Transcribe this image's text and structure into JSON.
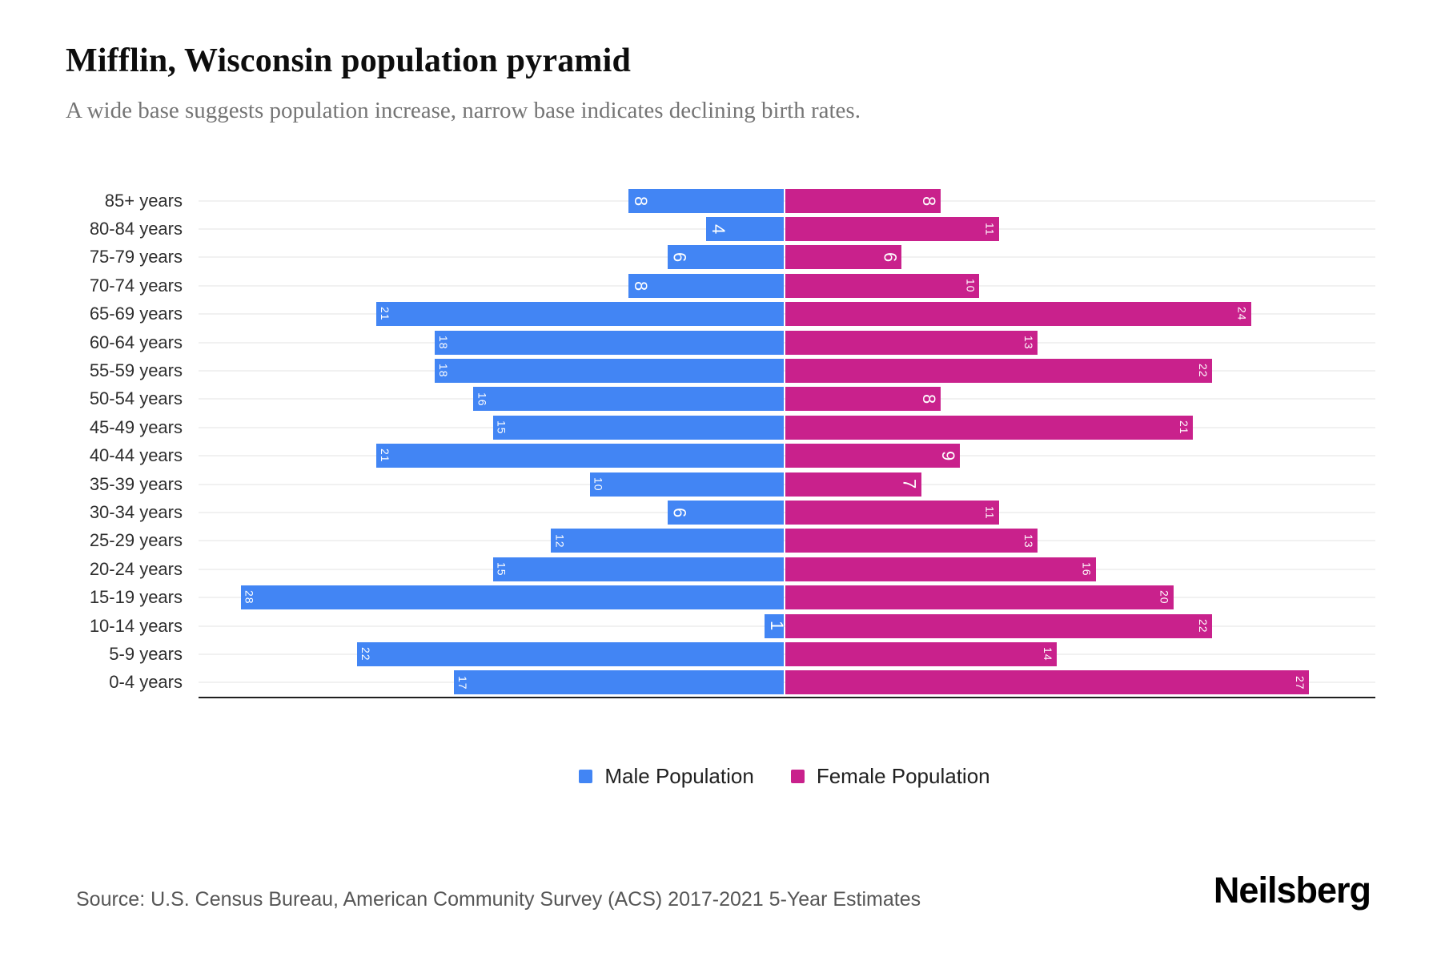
{
  "header": {
    "title": "Mifflin, Wisconsin population pyramid",
    "subtitle": "A wide base suggests population increase, narrow base indicates declining birth rates."
  },
  "chart_data": {
    "type": "bar",
    "variant": "population_pyramid",
    "title": "Mifflin, Wisconsin population pyramid",
    "categories": [
      "85+ years",
      "80-84 years",
      "75-79 years",
      "70-74 years",
      "65-69 years",
      "60-64 years",
      "55-59 years",
      "50-54 years",
      "45-49 years",
      "40-44 years",
      "35-39 years",
      "30-34 years",
      "25-29 years",
      "20-24 years",
      "15-19 years",
      "10-14 years",
      "5-9 years",
      "0-4 years"
    ],
    "series": [
      {
        "name": "Male Population",
        "side": "left",
        "color": "#4285f4",
        "values": [
          8,
          4,
          6,
          8,
          21,
          18,
          18,
          16,
          15,
          21,
          10,
          6,
          12,
          15,
          28,
          1,
          22,
          17
        ]
      },
      {
        "name": "Female Population",
        "side": "right",
        "color": "#c9218c",
        "values": [
          8,
          11,
          6,
          10,
          24,
          13,
          22,
          8,
          21,
          9,
          7,
          11,
          13,
          16,
          20,
          22,
          14,
          27
        ]
      }
    ],
    "axis_max_per_side": 30.5,
    "grid": true,
    "legend_position": "bottom",
    "value_label_style": "inside bar end, rotated 90deg, white"
  },
  "legend": {
    "items": [
      {
        "label": "Male Population",
        "color": "#4285f4"
      },
      {
        "label": "Female Population",
        "color": "#c9218c"
      }
    ]
  },
  "footer": {
    "source": "Source: U.S. Census Bureau, American Community Survey (ACS) 2017-2021 5-Year Estimates",
    "brand": "Neilsberg"
  },
  "colors": {
    "male": "#4285f4",
    "female": "#c9218c",
    "gridline": "#f1f1f1",
    "axis_line": "#1f1f1f",
    "title": "#0d0d0d",
    "subtitle": "#757575",
    "source_text": "#565656"
  }
}
